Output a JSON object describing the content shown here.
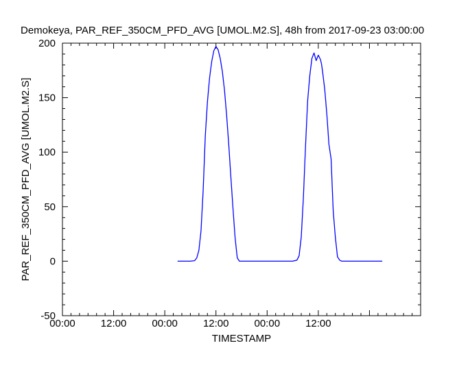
{
  "chart_data": {
    "type": "line",
    "title": "Demokeya, PAR_REF_350CM_PFD_AVG [UMOL.M2.S], 48h from  2017-09-23 03:00:00",
    "xlabel": "TIMESTAMP",
    "ylabel": "PAR_REF_350CM_PFD_AVG [UMOL.M2.S]",
    "xlim": [
      "2017-09-22 00:00",
      "2017-09-25 12:00"
    ],
    "ylim": [
      -50,
      200
    ],
    "x_tick_labels": [
      "00:00",
      "12:00",
      "00:00",
      "12:00",
      "00:00",
      "12:00"
    ],
    "y_tick_labels": [
      "-50",
      "0",
      "50",
      "100",
      "150",
      "200"
    ],
    "y_ticks": [
      -50,
      0,
      50,
      100,
      150,
      200
    ],
    "grid": false,
    "line_color": "#0000ff",
    "series": [
      {
        "x": [
          "2017-09-23 03:00",
          "2017-09-23 06:00",
          "2017-09-23 07:00",
          "2017-09-23 07:30",
          "2017-09-23 08:00",
          "2017-09-23 08:30",
          "2017-09-23 09:00",
          "2017-09-23 09:30",
          "2017-09-23 10:00",
          "2017-09-23 10:30",
          "2017-09-23 11:00",
          "2017-09-23 11:30",
          "2017-09-23 12:00",
          "2017-09-23 12:30",
          "2017-09-23 13:00",
          "2017-09-23 13:30",
          "2017-09-23 14:00",
          "2017-09-23 14:30",
          "2017-09-23 15:00",
          "2017-09-23 15:30",
          "2017-09-23 16:00",
          "2017-09-23 16:30",
          "2017-09-23 17:00",
          "2017-09-23 17:30",
          "2017-09-23 18:00",
          "2017-09-23 18:30",
          "2017-09-23 19:00",
          "2017-09-23 20:00",
          "2017-09-23 22:00",
          "2017-09-24 00:00",
          "2017-09-24 02:00",
          "2017-09-24 04:00",
          "2017-09-24 06:00",
          "2017-09-24 07:00",
          "2017-09-24 07:30",
          "2017-09-24 08:00",
          "2017-09-24 08:30",
          "2017-09-24 09:00",
          "2017-09-24 09:30",
          "2017-09-24 10:00",
          "2017-09-24 10:30",
          "2017-09-24 11:00",
          "2017-09-24 11:30",
          "2017-09-24 12:00",
          "2017-09-24 12:30",
          "2017-09-24 12:45",
          "2017-09-24 13:00",
          "2017-09-24 13:30",
          "2017-09-24 14:00",
          "2017-09-24 14:30",
          "2017-09-24 15:00",
          "2017-09-24 15:15",
          "2017-09-24 15:30",
          "2017-09-24 16:00",
          "2017-09-24 16:30",
          "2017-09-24 17:00",
          "2017-09-24 17:30",
          "2017-09-24 18:00",
          "2017-09-24 18:30",
          "2017-09-24 19:00",
          "2017-09-24 20:00",
          "2017-09-24 22:00",
          "2017-09-25 00:00",
          "2017-09-25 03:00"
        ],
        "values": [
          0,
          0,
          0.5,
          3,
          10,
          28,
          65,
          115,
          146,
          168,
          183,
          193,
          197,
          194,
          186,
          174,
          157,
          134,
          107,
          77,
          48,
          21,
          3,
          0,
          0,
          0,
          0,
          0,
          0,
          0,
          0,
          0,
          0,
          1,
          5,
          22,
          58,
          105,
          147,
          170,
          186,
          191,
          184,
          189,
          185,
          181,
          174,
          158,
          135,
          107,
          94,
          70,
          46,
          22,
          4,
          1,
          0,
          0,
          0,
          0,
          0,
          0,
          0,
          0
        ]
      }
    ]
  }
}
